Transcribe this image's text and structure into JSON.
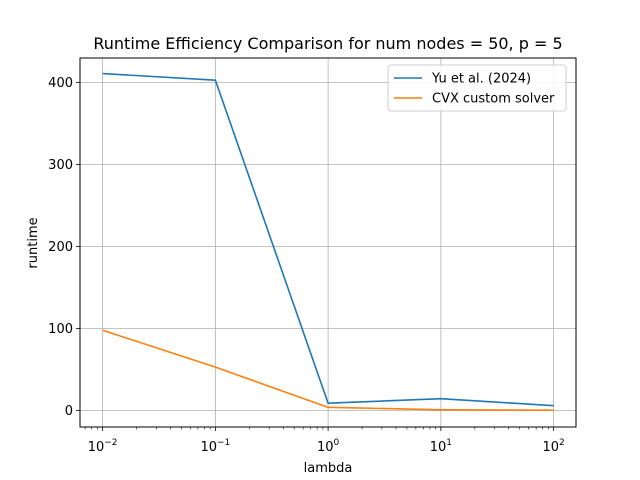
{
  "chart_data": {
    "type": "line",
    "title": "Runtime Efficiency Comparison for num nodes = 50, p = 5",
    "xlabel": "lambda",
    "ylabel": "runtime",
    "x_scale": "log",
    "x": [
      0.01,
      0.1,
      1,
      10,
      100
    ],
    "xlim": [
      0.0063,
      158
    ],
    "ylim": [
      -20,
      430
    ],
    "x_ticks": [
      {
        "value": 0.01,
        "base": "10",
        "exp": "−2"
      },
      {
        "value": 0.1,
        "base": "10",
        "exp": "−1"
      },
      {
        "value": 1,
        "base": "10",
        "exp": "0"
      },
      {
        "value": 10,
        "base": "10",
        "exp": "1"
      },
      {
        "value": 100,
        "base": "10",
        "exp": "2"
      }
    ],
    "y_ticks": [
      {
        "value": 0,
        "label": "0"
      },
      {
        "value": 100,
        "label": "100"
      },
      {
        "value": 200,
        "label": "200"
      },
      {
        "value": 300,
        "label": "300"
      },
      {
        "value": 400,
        "label": "400"
      }
    ],
    "grid": true,
    "legend_position": "top-right",
    "series": [
      {
        "name": "Yu et al. (2024)",
        "color": "#1f77b4",
        "values": [
          411,
          403,
          9,
          14.5,
          6
        ]
      },
      {
        "name": "CVX custom solver",
        "color": "#ff7f0e",
        "values": [
          98,
          53,
          4,
          1,
          0.5
        ]
      }
    ]
  }
}
